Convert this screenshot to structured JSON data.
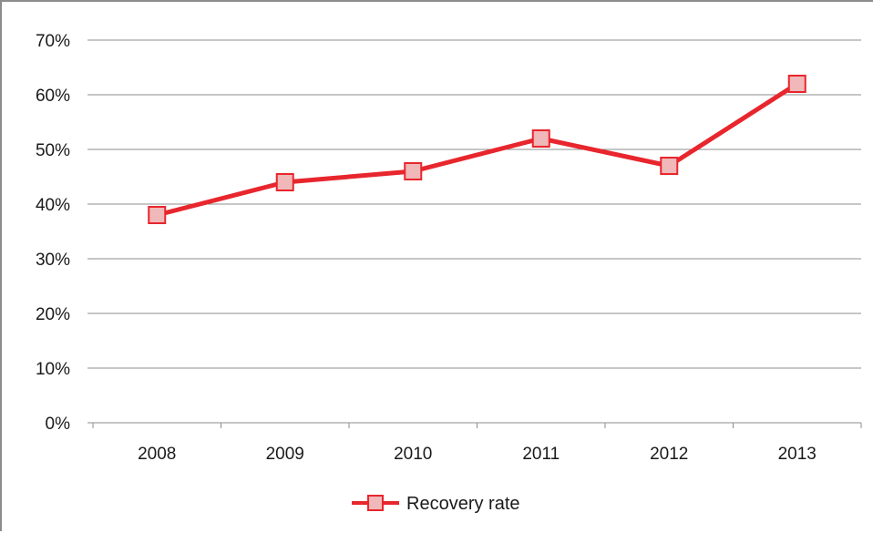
{
  "chart_data": {
    "type": "line",
    "categories": [
      "2008",
      "2009",
      "2010",
      "2011",
      "2012",
      "2013"
    ],
    "series": [
      {
        "name": "Recovery rate",
        "values": [
          38,
          44,
          46,
          52,
          47,
          62
        ],
        "color": "#e8262d",
        "marker_fill": "#f0b8b8",
        "marker": "square"
      }
    ],
    "ylim": [
      0,
      70
    ],
    "y_ticks": [
      "0%",
      "10%",
      "20%",
      "30%",
      "40%",
      "50%",
      "60%",
      "70%"
    ],
    "unit": "%",
    "grid": "horizontal",
    "legend_position": "bottom",
    "title": "",
    "xlabel": "",
    "ylabel": ""
  }
}
